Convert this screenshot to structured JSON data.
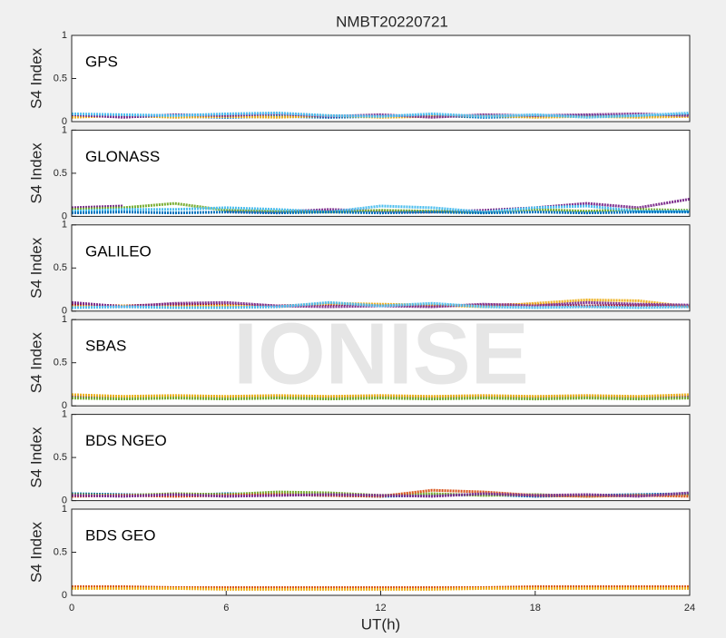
{
  "title": "NMBT20220721",
  "watermark": "IONISE",
  "chart_data": [
    {
      "type": "line",
      "label": "GPS",
      "ylabel": "S4 Index",
      "xlim": [
        0,
        24
      ],
      "ylim": [
        0,
        1
      ],
      "yticks": [
        0,
        0.5,
        1
      ],
      "x": [
        0,
        2,
        4,
        6,
        8,
        10,
        12,
        14,
        16,
        18,
        20,
        22,
        24
      ],
      "series": [
        {
          "color": "#0072BD",
          "values": [
            0.07,
            0.06,
            0.06,
            0.05,
            0.06,
            0.05,
            0.06,
            0.07,
            0.05,
            0.06,
            0.07,
            0.06,
            0.08
          ]
        },
        {
          "color": "#EDB120",
          "values": [
            0.05,
            0.07,
            0.05,
            0.06,
            0.05,
            0.07,
            0.05,
            0.06,
            0.07,
            0.05,
            0.06,
            0.05,
            0.06
          ]
        },
        {
          "color": "#7E2F8E",
          "values": [
            0.08,
            0.05,
            0.08,
            0.07,
            0.09,
            0.06,
            0.08,
            0.05,
            0.08,
            0.07,
            0.08,
            0.09,
            0.07
          ]
        },
        {
          "color": "#4DBEEE",
          "values": [
            0.09,
            0.08,
            0.07,
            0.09,
            0.1,
            0.07,
            0.06,
            0.09,
            0.06,
            0.08,
            0.05,
            0.07,
            0.1
          ]
        }
      ]
    },
    {
      "type": "line",
      "label": "GLONASS",
      "ylabel": "S4 Index",
      "xlim": [
        0,
        24
      ],
      "ylim": [
        0,
        1
      ],
      "yticks": [
        0,
        0.5,
        1
      ],
      "x": [
        0,
        2,
        4,
        6,
        8,
        10,
        12,
        14,
        16,
        18,
        20,
        22,
        24
      ],
      "series": [
        {
          "color": "#7E2F8E",
          "values": [
            0.1,
            0.12,
            null,
            0.06,
            0.05,
            0.08,
            0.06,
            0.05,
            0.07,
            0.1,
            0.15,
            0.1,
            0.2
          ]
        },
        {
          "color": "#77AC30",
          "values": [
            0.08,
            0.1,
            0.15,
            0.07,
            0.06,
            0.05,
            0.07,
            0.06,
            0.05,
            0.08,
            0.06,
            0.08,
            0.07
          ]
        },
        {
          "color": "#4DBEEE",
          "values": [
            0.06,
            0.08,
            0.08,
            0.1,
            0.08,
            0.05,
            0.12,
            0.1,
            0.05,
            0.1,
            0.12,
            0.06,
            0.06
          ]
        },
        {
          "color": "#0072BD",
          "values": [
            0.04,
            0.05,
            0.04,
            0.05,
            0.04,
            0.05,
            0.04,
            0.05,
            0.04,
            0.05,
            0.04,
            0.05,
            0.05
          ]
        }
      ]
    },
    {
      "type": "line",
      "label": "GALILEO",
      "ylabel": "S4 Index",
      "xlim": [
        0,
        24
      ],
      "ylim": [
        0,
        1
      ],
      "yticks": [
        0,
        0.5,
        1
      ],
      "x": [
        0,
        2,
        4,
        6,
        8,
        10,
        12,
        14,
        16,
        18,
        20,
        22,
        24
      ],
      "series": [
        {
          "color": "#A2142F",
          "values": [
            0.08,
            0.06,
            0.08,
            0.07,
            0.06,
            0.08,
            0.07,
            0.06,
            0.07,
            0.08,
            0.06,
            0.07,
            0.06
          ]
        },
        {
          "color": "#EDB120",
          "values": [
            0.05,
            0.06,
            0.05,
            0.06,
            0.05,
            0.09,
            0.08,
            0.07,
            0.05,
            0.09,
            0.13,
            0.12,
            0.05
          ]
        },
        {
          "color": "#7E2F8E",
          "values": [
            0.1,
            0.05,
            0.09,
            0.1,
            0.06,
            0.05,
            0.06,
            0.05,
            0.08,
            0.06,
            0.1,
            0.08,
            0.07
          ]
        },
        {
          "color": "#4DBEEE",
          "values": [
            0.04,
            0.05,
            0.04,
            0.04,
            0.05,
            0.1,
            0.06,
            0.09,
            0.05,
            0.04,
            0.05,
            0.04,
            0.05
          ]
        }
      ]
    },
    {
      "type": "line",
      "label": "SBAS",
      "ylabel": "S4 Index",
      "xlim": [
        0,
        24
      ],
      "ylim": [
        0,
        1
      ],
      "yticks": [
        0,
        0.5,
        1
      ],
      "x": [
        0,
        2,
        4,
        6,
        8,
        10,
        12,
        14,
        16,
        18,
        20,
        22,
        24
      ],
      "series": [
        {
          "color": "#7E2F8E",
          "values": [
            0.11,
            0.1,
            0.11,
            0.1,
            0.11,
            0.1,
            0.11,
            0.1,
            0.11,
            0.1,
            0.11,
            0.1,
            0.11
          ]
        },
        {
          "color": "#EDB120",
          "values": [
            0.13,
            0.11,
            0.12,
            0.11,
            0.12,
            0.11,
            0.12,
            0.11,
            0.12,
            0.11,
            0.12,
            0.11,
            0.13
          ]
        },
        {
          "color": "#77AC30",
          "values": [
            0.09,
            0.08,
            0.09,
            0.08,
            0.09,
            0.08,
            0.09,
            0.08,
            0.09,
            0.08,
            0.09,
            0.08,
            0.09
          ]
        }
      ]
    },
    {
      "type": "line",
      "label": "BDS NGEO",
      "ylabel": "S4 Index",
      "xlim": [
        0,
        24
      ],
      "ylim": [
        0,
        1
      ],
      "yticks": [
        0,
        0.5,
        1
      ],
      "x": [
        0,
        2,
        4,
        6,
        8,
        10,
        12,
        14,
        16,
        18,
        20,
        22,
        24
      ],
      "series": [
        {
          "color": "#0072BD",
          "values": [
            0.08,
            0.07,
            0.06,
            0.08,
            0.07,
            0.06,
            0.05,
            0.06,
            0.07,
            0.05,
            0.06,
            0.07,
            0.08
          ]
        },
        {
          "color": "#77AC30",
          "values": [
            0.07,
            0.06,
            0.08,
            0.07,
            0.1,
            0.09,
            0.06,
            0.08,
            0.06,
            0.07,
            0.05,
            0.06,
            0.07
          ]
        },
        {
          "color": "#D95319",
          "values": [
            0.05,
            0.06,
            0.05,
            0.06,
            0.07,
            0.06,
            0.05,
            0.12,
            0.1,
            0.06,
            0.05,
            0.06,
            0.05
          ]
        },
        {
          "color": "#7E2F8E",
          "values": [
            0.06,
            0.05,
            0.07,
            0.05,
            0.06,
            0.07,
            0.06,
            0.05,
            0.08,
            0.06,
            0.07,
            0.05,
            0.09
          ]
        }
      ]
    },
    {
      "type": "line",
      "label": "BDS GEO",
      "ylabel": "S4 Index",
      "xlabel": "UT(h)",
      "xlim": [
        0,
        24
      ],
      "ylim": [
        0,
        1
      ],
      "yticks": [
        0,
        0.5,
        1
      ],
      "xticks": [
        0,
        6,
        12,
        18,
        24
      ],
      "x": [
        0,
        2,
        4,
        6,
        8,
        10,
        12,
        14,
        16,
        18,
        20,
        22,
        24
      ],
      "series": [
        {
          "color": "#D95319",
          "values": [
            0.1,
            0.1,
            0.09,
            0.09,
            0.09,
            0.09,
            0.09,
            0.09,
            0.09,
            0.1,
            0.1,
            0.1,
            0.1
          ]
        },
        {
          "color": "#EDB120",
          "values": [
            0.08,
            0.08,
            0.08,
            0.07,
            0.07,
            0.07,
            0.07,
            0.07,
            0.08,
            0.08,
            0.08,
            0.08,
            0.08
          ]
        }
      ]
    }
  ]
}
